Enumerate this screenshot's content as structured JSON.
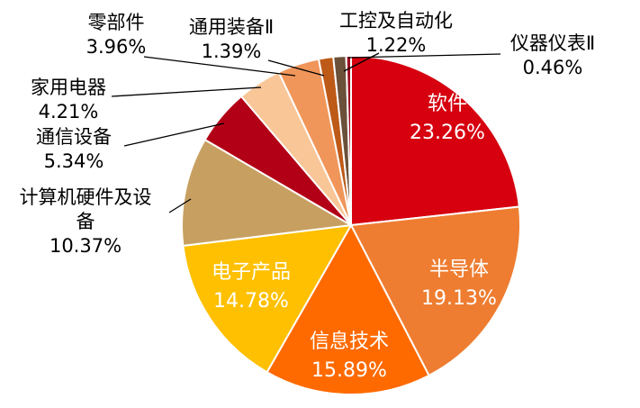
{
  "chart_data": {
    "type": "pie",
    "title": "",
    "unit": "%",
    "direction": "clockwise",
    "start_angle_deg": 0,
    "legend_position": "none",
    "background": "#ffffff",
    "inside_label_color": "#ffffff",
    "outside_label_color": "#000000",
    "leader_line_color": "#000000",
    "slices": [
      {
        "id": "software",
        "label": "软件",
        "value": 23.26,
        "percent_label": "23.26%",
        "color": "#d6000f",
        "label_placement": "inside"
      },
      {
        "id": "semiconductor",
        "label": "半导体",
        "value": 19.13,
        "percent_label": "19.13%",
        "color": "#ee7d31",
        "label_placement": "inside"
      },
      {
        "id": "information-technology",
        "label": "信息技术",
        "value": 15.89,
        "percent_label": "15.89%",
        "color": "#fe6a00",
        "label_placement": "inside"
      },
      {
        "id": "electronic-products",
        "label": "电子产品",
        "value": 14.78,
        "percent_label": "14.78%",
        "color": "#fec000",
        "label_placement": "inside"
      },
      {
        "id": "computer-hardware-equipment",
        "label": "计算机硬件及设备",
        "value": 10.37,
        "percent_label": "10.37%",
        "color": "#c7a061",
        "label_placement": "outside"
      },
      {
        "id": "telecom-equipment",
        "label": "通信设备",
        "value": 5.34,
        "percent_label": "5.34%",
        "color": "#b20016",
        "label_placement": "outside"
      },
      {
        "id": "home-appliances",
        "label": "家用电器",
        "value": 4.21,
        "percent_label": "4.21%",
        "color": "#f9c698",
        "label_placement": "outside"
      },
      {
        "id": "components",
        "label": "零部件",
        "value": 3.96,
        "percent_label": "3.96%",
        "color": "#f0965a",
        "label_placement": "outside"
      },
      {
        "id": "general-equipment-ii",
        "label": "通用装备Ⅱ",
        "value": 1.39,
        "percent_label": "1.39%",
        "color": "#bd5a18",
        "label_placement": "outside"
      },
      {
        "id": "industrial-control-automation",
        "label": "工控及自动化",
        "value": 1.22,
        "percent_label": "1.22%",
        "color": "#6b503a",
        "label_placement": "outside"
      },
      {
        "id": "instruments-ii",
        "label": "仪器仪表Ⅱ",
        "value": 0.46,
        "percent_label": "0.46%",
        "color": "#9c0b1e",
        "label_placement": "outside"
      }
    ]
  }
}
